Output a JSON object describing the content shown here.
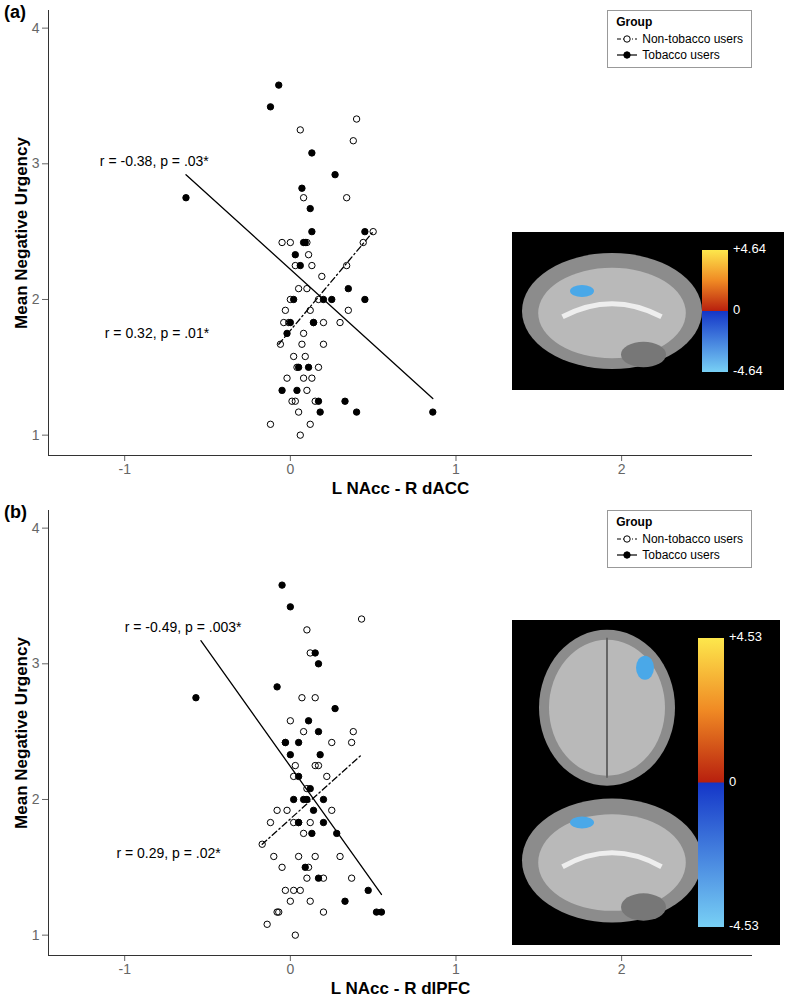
{
  "chart_data": [
    {
      "type": "scatter",
      "panel": "(a)",
      "x_label": "L NAcc - R dACC",
      "y_label": "Mean Negative Urgency",
      "xlim": [
        -1.46,
        2.79
      ],
      "ylim": [
        0.85,
        4.13
      ],
      "xticks": [
        -1,
        0,
        1,
        2
      ],
      "yticks": [
        1,
        2,
        3,
        4
      ],
      "legend": "top-right",
      "legend_title": "Group",
      "series": [
        {
          "name": "Non-tobacco users",
          "color": "#000000",
          "marker": "open_circle",
          "line_style": "dashdot",
          "x": [
            0.4,
            0.06,
            0.38,
            0.34,
            0.08,
            0.5,
            0.44,
            0.34,
            -0.05,
            0.0,
            0.03,
            0.05,
            0.1,
            0.11,
            0.13,
            0.1,
            0.0,
            -0.03,
            -0.04,
            -0.01,
            0.12,
            0.08,
            0.14,
            0.19,
            0.3,
            0.35,
            0.2,
            0.07,
            0.02,
            0.04,
            -0.02,
            0.08,
            0.13,
            0.1,
            0.03,
            0.15,
            0.05,
            0.12,
            -0.12,
            0.06,
            0.17,
            0.2,
            -0.06,
            0.09,
            0.01,
            0.17
          ],
          "y": [
            3.33,
            3.25,
            3.17,
            2.75,
            2.75,
            2.5,
            2.42,
            2.25,
            2.42,
            2.42,
            2.25,
            2.08,
            2.42,
            2.33,
            2.25,
            2.08,
            2.0,
            1.92,
            1.83,
            1.83,
            1.92,
            1.75,
            1.83,
            2.17,
            1.83,
            1.92,
            1.83,
            1.67,
            1.58,
            1.5,
            1.42,
            1.42,
            1.42,
            1.33,
            1.25,
            1.25,
            1.17,
            1.08,
            1.08,
            1.0,
            1.5,
            1.67,
            1.67,
            1.58,
            1.25,
            2.0
          ],
          "fit": {
            "x": [
              -0.07,
              0.5
            ],
            "y": [
              1.67,
              2.5
            ]
          }
        },
        {
          "name": "Tobacco users",
          "color": "#000000",
          "marker": "filled_circle",
          "line_style": "solid",
          "x": [
            -0.63,
            -0.12,
            -0.07,
            0.86,
            0.13,
            0.07,
            0.27,
            0.45,
            0.45,
            0.4,
            0.33,
            0.35,
            0.13,
            0.09,
            0.03,
            0.02,
            0.06,
            -0.02,
            0.0,
            0.05,
            0.11,
            0.17,
            0.18,
            0.2,
            0.12,
            -0.05,
            0.08,
            0.04,
            0.25,
            0.14
          ],
          "y": [
            2.75,
            3.42,
            3.58,
            1.17,
            3.08,
            2.82,
            2.92,
            2.5,
            2.0,
            1.17,
            1.25,
            2.08,
            2.5,
            2.42,
            2.33,
            2.0,
            2.25,
            1.75,
            1.83,
            1.5,
            1.5,
            1.25,
            1.17,
            2.0,
            2.67,
            1.33,
            2.42,
            1.33,
            2.0,
            1.83
          ],
          "fit": {
            "x": [
              -0.63,
              0.86
            ],
            "y": [
              2.92,
              1.27
            ]
          }
        }
      ],
      "annotations": [
        {
          "text": "r = -0.38, p = .03*",
          "x": -1.15,
          "y": 3.02
        },
        {
          "text": "r = 0.32, p = .01*",
          "x": -1.12,
          "y": 1.75
        }
      ],
      "inset": {
        "colorbar": {
          "range": [
            -4.64,
            4.64
          ],
          "ticks": [
            {
              "value": 4.64,
              "label": "+4.64"
            },
            0,
            -4.64
          ]
        }
      }
    },
    {
      "type": "scatter",
      "panel": "(b)",
      "x_label": "L NAcc - R dlPFC",
      "y_label": "Mean Negative Urgency",
      "xlim": [
        -1.46,
        2.79
      ],
      "ylim": [
        0.85,
        4.13
      ],
      "xticks": [
        -1,
        0,
        1,
        2
      ],
      "yticks": [
        1,
        2,
        3,
        4
      ],
      "legend": "top-right",
      "legend_title": "Group",
      "series": [
        {
          "name": "Non-tobacco users",
          "color": "#000000",
          "marker": "open_circle",
          "line_style": "dashdot",
          "x": [
            0.43,
            0.1,
            0.12,
            0.07,
            0.15,
            0.25,
            0.38,
            0.37,
            0.08,
            0.0,
            -0.03,
            0.03,
            0.02,
            0.15,
            0.17,
            0.22,
            0.1,
            -0.02,
            0.05,
            0.08,
            0.12,
            0.02,
            -0.08,
            -0.12,
            -0.17,
            -0.1,
            -0.05,
            0.05,
            0.11,
            0.15,
            0.3,
            0.37,
            0.2,
            -0.03,
            0.02,
            0.06,
            0.12,
            -0.08,
            -0.07,
            0.0,
            0.03,
            -0.14,
            0.2,
            0.1,
            0.25
          ],
          "y": [
            3.33,
            3.25,
            3.08,
            2.75,
            2.75,
            2.42,
            2.5,
            2.42,
            2.5,
            2.58,
            2.42,
            2.25,
            2.17,
            2.25,
            2.25,
            2.17,
            2.08,
            1.92,
            1.83,
            1.75,
            1.83,
            1.83,
            1.92,
            1.83,
            1.67,
            1.58,
            1.5,
            1.58,
            1.5,
            1.58,
            1.58,
            1.42,
            1.42,
            1.33,
            1.33,
            1.33,
            1.25,
            1.17,
            1.17,
            1.25,
            1.0,
            1.08,
            1.17,
            1.42,
            1.92
          ],
          "fit": {
            "x": [
              -0.17,
              0.43
            ],
            "y": [
              1.67,
              2.33
            ]
          }
        },
        {
          "name": "Tobacco users",
          "color": "#000000",
          "marker": "filled_circle",
          "line_style": "solid",
          "x": [
            -0.57,
            -0.05,
            0.0,
            0.15,
            0.17,
            0.27,
            0.17,
            -0.08,
            0.05,
            0.0,
            0.05,
            0.1,
            0.12,
            0.08,
            0.14,
            0.2,
            0.28,
            0.47,
            0.55,
            0.52,
            0.33,
            0.17,
            0.05,
            0.09,
            0.02,
            -0.03,
            0.11,
            0.18,
            0.13,
            0.2
          ],
          "y": [
            2.75,
            3.58,
            3.42,
            3.08,
            3.0,
            2.67,
            2.5,
            2.83,
            2.42,
            2.33,
            2.17,
            2.0,
            2.08,
            2.0,
            1.92,
            1.83,
            1.75,
            1.33,
            1.17,
            1.17,
            1.25,
            1.42,
            1.83,
            1.5,
            2.0,
            2.42,
            2.58,
            2.33,
            1.75,
            2.0
          ],
          "fit": {
            "x": [
              -0.54,
              0.55
            ],
            "y": [
              3.17,
              1.3
            ]
          }
        }
      ],
      "annotations": [
        {
          "text": "r = -0.49, p = .003*",
          "x": -1.0,
          "y": 3.27
        },
        {
          "text": "r = 0.29, p = .02*",
          "x": -1.05,
          "y": 1.6
        }
      ],
      "inset": {
        "colorbar": {
          "range": [
            -4.53,
            4.53
          ],
          "ticks": [
            {
              "value": 4.53,
              "label": "+4.53"
            },
            0,
            -4.53
          ]
        }
      }
    }
  ]
}
